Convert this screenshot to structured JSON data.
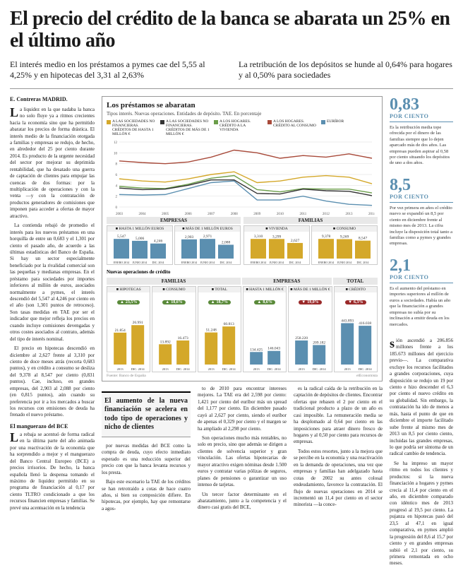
{
  "headline": "El precio del crédito de la banca se abarata un 25% en el último año",
  "subheads": [
    "El interés medio en los préstamos a pymes cae del 5,55 al 4,25% y en hipotecas del 3,31 al 2,63%",
    "La retribución de los depósitos se hunde al 0,64% para hogares y al 0,50% para sociedades"
  ],
  "byline": "E. Contreras MADRID.",
  "body_left": [
    "La liquidez en la que nadaba la banca no solo fluye ya a ritmos crecientes hacia la economía sino que ha permitido abaratar los precios de forma drástica. El interés medio de la financiación otorgada a familias y empresas se redujo, de hecho, en alrededor del 25 por ciento durante 2014. Es producto de la urgente necesidad del sector por mejorar su deprimida rentabilidad, que ha desatado una guerra de captación de clientes para empujar las cuencas de dos formas: por la multiplicación de operaciones y con la venta —y con la contratación de productos generadores de comisiones que imponen para acceder a ofertas de mayor atractivo.",
    "La contienda rebajó de promedio el interés para los nuevos préstamos en una horquilla de entre un 0,683 y el 1,301 por ciento el pasado año, de acuerdo a las últimas estadísticas del Banco de España. Si hay un sector especialmente beneficiado por la rivalidad comercial son las pequeñas y medianas empresas. En el préstamo para sociedades por importes inferiores al millón de euros, asociados normalmente a pymes, el interés descendió del 5,547 al 4,246 por ciento en el año (son 1,301 puntos de retroceso). Son tasas medidas en TAE por ser el indicador que mejor refleja los precios en cuando incluye comisiones devengadas y otros costes asociados al contrato, además del tipo de interés nominal.",
    "El precio en hipotecas descendió en diciembre al 2,627 frente al 3,310 por ciento de doce meses atrás (recorta 0,683 puntos), y en crédito a consumo se desliza del 9,378 al 8,547 por ciento (0,831 puntos). Cae, incluso, en grandes empresas, del 2,903 al 2,088 por ciento (en 0,815 puntos), aún cuando su preferencia por ir a los mercados a buscar los recursos con emisiones de deuda ha frenado el nuevo préstamo."
  ],
  "sec2_title": "El manguerazo del BCE",
  "body_left2": [
    "La rebaja se acentuó de forma radical en la última parte del año animada por una reactivación de la economía que ha sorprendido a mejor y el manguerazo del Banco Central Europeo (BCE) a precios irrisorios. De hecho, la banca española llenó la despensa tomando el máximo de liquidez permitido en su programa de financiación al 0,17 por ciento TLTRO condicionado a que los recursos financien empresas y familias. Se prevé una acentuación en la tendencia"
  ],
  "lower_cols": [
    "por nuevas medidas del BCE como la compra de deuda, cuyo efecto inmediato esperado es una reducción superior del precio con que la banca levanta recursos y los presta.\nBajo este escenario la TAE de los créditos se han retrotraído a cotas de hace cuatro años, si bien su composición difiere. En hipotecas, por ejemplo, hay que remontarse a agos-",
    "to de 2010 para encontrar intereses mejores. La TAE era del 2,598 por ciento: 1,421 por ciento del euríbor más un spread del 1,177 por ciento. En diciembre pasado cayó al 2,627 por ciento, siendo el euríbor de apenas el 0,329 por ciento y el margen se ha ampliado al 2,298 por ciento.\nSon operaciones mucho más rentables, no solo en precio, sino que además se dirigen a clientes de solvencia superior y gran vinculación. Las ofertas hipotecarias de mayor atractivo exigen nóminas desde 1.500 euros y contratar varias pólizas de seguros, planes de pensiones o garantizar un uso intenso de tarjetas.\nUn tercer factor determinante en el abaratamiento, junto a la competencia y el dinero casi gratis del BCE,",
    "es la radical caída de la retribución en la captación de depósitos de clientes. Encontrar ofertas que rebasen el 2 por ciento en el tradicional producto a plazo de un año es casi imposible. La remuneración media se ha desplomado al 0,64 por ciento en las imposiciones para atraer dinero fresco de hogares y al 0,50 por ciento para recursos de empresas.\nTodos estos resortes, junto a la mejora que se percibe en la economía y una reactivación en la demanda de operaciones, una vez que empresas y familias han adelgazado hasta cotas de 2002 su antes colosal endeudamiento, favorece la contratación. El flujo de nuevas operaciones en 2014 se incrementó un 11,4 por ciento en el sector minorista —la conce-"
  ],
  "body_right": [
    "sión ascendió a 206.856 millones frente a los 185.673 millones del ejercicio previo—. La comparativa excluye los recursos facilitados a grandes corporaciones, cuya disposición se redujo un 19 por ciento e hizo descender el 6,3 por ciento el nuevo crédito en su globalidad. Sin embargo, la contratación ha ido de menos a más, hasta el punto de que en diciembre el importe facilitado sube frente al mismo mes de 2013 un 8,5 por ciento ciento, incluidas las grandes empresas, lo que podría ser síntoma de un radical cambio de tendencia.",
    "Se ha impreso un mayor ritmo en todos los clientes y productos: si la nueva financiación a hogares y pymes crecía al 11,4 por ciento en el año, en diciembre comparado con idéntico mes de 2013 progresó al 19,5 por ciento. La pujanza en hipotecas pasó del 23,5 al 47,1 en igual comparativa, en pymes amplió la progresión del 8,6 al 15,7 por ciento y en grandes empresas subió el 2,1 por ciento, su primera remontada en ocho meses."
  ],
  "pullquote": "El aumento de la nueva financiación se acelera en todo tipo de operaciones y nicho de clientes",
  "stats": [
    {
      "num": "0,83",
      "unit": "POR CIENTO",
      "text": "Es la retribución media tope ofrecida por el dinero de las familias siempre que lo dejen aparcado más de dos años. Las empresas pueden aspirar al 0,58 por ciento situando los depósitos de uno a dos años."
    },
    {
      "num": "8,5",
      "unit": "POR CIENTO",
      "text": "Por vez primera en años el crédito nuevo se expandió un 8,5 por ciento en diciembre frente al mismo mes de 2013. La cifra incluye la disposición total tanto a familias como a pymes y grandes empresas."
    },
    {
      "num": "2,1",
      "unit": "POR CIENTO",
      "text": "Es el aumento del préstamo en importes superiores al millón de euros a sociedades. Había un año que la financiación a grandes empresas no subía por su inclinación a emitir deuda en los mercados."
    }
  ],
  "chart1": {
    "title": "Los préstamos se abaratan",
    "subtitle": "Tipos interés. Nuevas operaciones. Entidades de depósito. TAE. En porcentaje",
    "legend": [
      {
        "label": "A LAS SOCIEDADES NO FINANCIERAS. CRÉDITOS DE HASTA 1 MILLÓN €",
        "color": "#d4a82a"
      },
      {
        "label": "A LAS SOCIEDADES NO FINANCIERAS. CRÉDITOS DE MÁS DE 1 MILLÓN €",
        "color": "#333333"
      },
      {
        "label": "A LOS HOGARES. CRÉDITO A LA VIVIENDA",
        "color": "#6b9e4a"
      },
      {
        "label": "A LOS HOGARES. CRÉDITO AL CONSUMO",
        "color": "#a84a3a"
      },
      {
        "label": "EURÍBOR",
        "color": "#5b8fb0"
      }
    ],
    "years": [
      "2003",
      "2004",
      "2005",
      "2006",
      "2007",
      "2008",
      "2009",
      "2010",
      "2011",
      "2012",
      "2013",
      "2014"
    ],
    "ylim": [
      0,
      12
    ],
    "series": {
      "consumo": [
        8.5,
        8.2,
        8.0,
        8.3,
        9.2,
        10.5,
        10.0,
        9.0,
        9.5,
        9.2,
        9.8,
        9.0
      ],
      "pymes": [
        5.2,
        4.8,
        4.6,
        5.2,
        6.0,
        6.5,
        4.5,
        4.8,
        5.5,
        5.8,
        5.5,
        4.3
      ],
      "vivienda": [
        3.8,
        3.5,
        3.4,
        4.2,
        5.3,
        5.8,
        3.2,
        2.8,
        3.4,
        3.3,
        3.3,
        2.6
      ],
      "grandes": [
        3.5,
        3.2,
        3.3,
        4.0,
        5.0,
        5.0,
        2.5,
        2.4,
        3.3,
        3.0,
        2.9,
        2.1
      ],
      "euribor": [
        2.3,
        2.2,
        2.3,
        3.4,
        4.5,
        4.8,
        1.3,
        1.3,
        2.0,
        1.1,
        0.5,
        0.3
      ]
    }
  },
  "mini": {
    "groups": [
      {
        "head": "EMPRESAS",
        "charts": [
          {
            "head": "HASTA 1 MILLÓN EUROS",
            "color": "#5b8fb0",
            "labels": [
              "ENERO 2014",
              "JUNIO 2014",
              "DIC. 2014"
            ],
            "values": [
              5.547,
              5.006,
              4.246
            ]
          },
          {
            "head": "MÁS DE 1 MILLÓN EUROS",
            "color": "#5b8fb0",
            "labels": [
              "ENERO 2014",
              "JUNIO 2014",
              "DIC. 2014"
            ],
            "values": [
              2.903,
              2.971,
              2.088
            ]
          }
        ]
      },
      {
        "head": "FAMILIAS",
        "charts": [
          {
            "head": "VIVIENDA",
            "color": "#d4a82a",
            "labels": [
              "ENERO 2014",
              "JUNIO 2014",
              "DIC. 2014"
            ],
            "values": [
              3.31,
              3.299,
              2.627
            ]
          },
          {
            "head": "CONSUMO",
            "color": "#d4a82a",
            "labels": [
              "ENERO 2014",
              "JUNIO 2014",
              "DIC. 2014"
            ],
            "values": [
              9.378,
              9.269,
              8.547
            ]
          }
        ]
      }
    ]
  },
  "credit": {
    "title": "Nuevas operaciones de crédito",
    "groups": [
      "FAMILIAS",
      "EMPRESAS",
      "TOTAL"
    ],
    "charts": [
      {
        "head": "HIPOTECAS",
        "delta": "23,5%",
        "dir": "up",
        "color": "#d4a82a",
        "labels": [
          "2013",
          "DIC. 2014"
        ],
        "values": [
          21854,
          26991
        ],
        "max": 30000
      },
      {
        "head": "CONSUMO",
        "delta": "18,6%",
        "dir": "up",
        "color": "#d4a82a",
        "labels": [
          "2013",
          "DIC. 2014"
        ],
        "values": [
          13892,
          16473
        ],
        "max": 30000
      },
      {
        "head": "TOTAL",
        "delta": "18,7%",
        "dir": "up",
        "color": "#d4a82a",
        "labels": [
          "2013",
          "DIC. 2014"
        ],
        "values": [
          51248,
          60813
        ],
        "max": 70000
      },
      {
        "head": "HASTA 1 MILLÓN €",
        "delta": "8,6%",
        "dir": "up",
        "color": "#5b8fb0",
        "labels": [
          "2013",
          "DIC. 2014"
        ],
        "values": [
          134425,
          146043
        ],
        "max": 470000
      },
      {
        "head": "MÁS DE 1 MILLÓN €",
        "delta": "19,0%",
        "dir": "dn",
        "color": "#5b8fb0",
        "labels": [
          "2013",
          "DIC. 2014"
        ],
        "values": [
          258220,
          209182
        ],
        "max": 470000
      },
      {
        "head": "CRÉDITO",
        "delta": "6,3%",
        "dir": "dn",
        "color": "#5b8fb0",
        "labels": [
          "2013",
          "DIC. 2014"
        ],
        "values": [
          443893,
          416038
        ],
        "max": 470000
      }
    ],
    "source_left": "Fuente: Banco de España",
    "source_right": "elEconomista"
  }
}
